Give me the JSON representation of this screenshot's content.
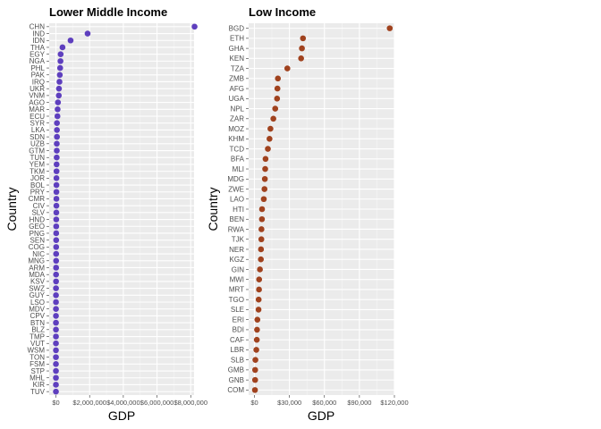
{
  "chart_data": [
    {
      "type": "scatter",
      "title": "Lower Middle Income",
      "xlabel": "GDP",
      "ylabel": "Country",
      "xlim": [
        -400000,
        8200000
      ],
      "x_ticks": [
        0,
        2000000,
        4000000,
        6000000,
        8000000
      ],
      "x_tick_labels": [
        "$0",
        "$2,000,000",
        "$4,000,000",
        "$6,000,000",
        "$8,000,000"
      ],
      "color": "#5e3fbe",
      "categories": [
        "CHN",
        "IND",
        "IDN",
        "THA",
        "EGY",
        "NGA",
        "PHL",
        "PAK",
        "IRQ",
        "UKR",
        "VNM",
        "AGO",
        "MAR",
        "ECU",
        "SYR",
        "LKA",
        "SDN",
        "UZB",
        "GTM",
        "TUN",
        "YEM",
        "TKM",
        "JOR",
        "BOL",
        "PRY",
        "CMR",
        "CIV",
        "SLV",
        "HND",
        "GEO",
        "PNG",
        "SEN",
        "COG",
        "NIC",
        "MNG",
        "ARM",
        "MDA",
        "KSV",
        "SWZ",
        "GUY",
        "LSO",
        "MDV",
        "CPV",
        "BTN",
        "BLZ",
        "TMP",
        "VUT",
        "WSM",
        "TON",
        "FSM",
        "STP",
        "MHL",
        "KIR",
        "TUV"
      ],
      "values": [
        8230000,
        1880000,
        870000,
        390000,
        280000,
        270000,
        250000,
        230000,
        210000,
        180000,
        170000,
        120000,
        100000,
        90000,
        60000,
        60000,
        60000,
        50000,
        50000,
        45000,
        40000,
        35000,
        30000,
        30000,
        28000,
        28000,
        27000,
        24000,
        19000,
        17000,
        16000,
        15000,
        14000,
        12000,
        11000,
        10000,
        8000,
        7000,
        4000,
        3000,
        2500,
        2400,
        1900,
        1800,
        1600,
        1500,
        800,
        800,
        500,
        320,
        300,
        180,
        170,
        38
      ]
    },
    {
      "type": "scatter",
      "title": "Low Income",
      "xlabel": "GDP",
      "ylabel": "Country",
      "xlim": [
        -5000,
        120000
      ],
      "x_ticks": [
        0,
        30000,
        60000,
        90000,
        120000
      ],
      "x_tick_labels": [
        "$0",
        "$30,000",
        "$60,000",
        "$90,000",
        "$120,000"
      ],
      "color": "#a0421e",
      "categories": [
        "BGD",
        "ETH",
        "GHA",
        "KEN",
        "TZA",
        "ZMB",
        "AFG",
        "UGA",
        "NPL",
        "ZAR",
        "MOZ",
        "KHM",
        "TCD",
        "BFA",
        "MLI",
        "MDG",
        "ZWE",
        "LAO",
        "HTI",
        "BEN",
        "RWA",
        "TJK",
        "NER",
        "KGZ",
        "GIN",
        "MWI",
        "MRT",
        "TGO",
        "SLE",
        "ERI",
        "BDI",
        "CAF",
        "LBR",
        "SLB",
        "GMB",
        "GNB",
        "COM"
      ],
      "values": [
        116000,
        41600,
        40700,
        40000,
        28200,
        20100,
        19700,
        19400,
        17800,
        16200,
        13700,
        12900,
        11500,
        9500,
        9200,
        8900,
        8600,
        8000,
        6500,
        6400,
        6000,
        5900,
        5600,
        5500,
        4700,
        4000,
        3900,
        3600,
        3500,
        2500,
        2200,
        2000,
        1600,
        800,
        580,
        560,
        420
      ]
    }
  ]
}
